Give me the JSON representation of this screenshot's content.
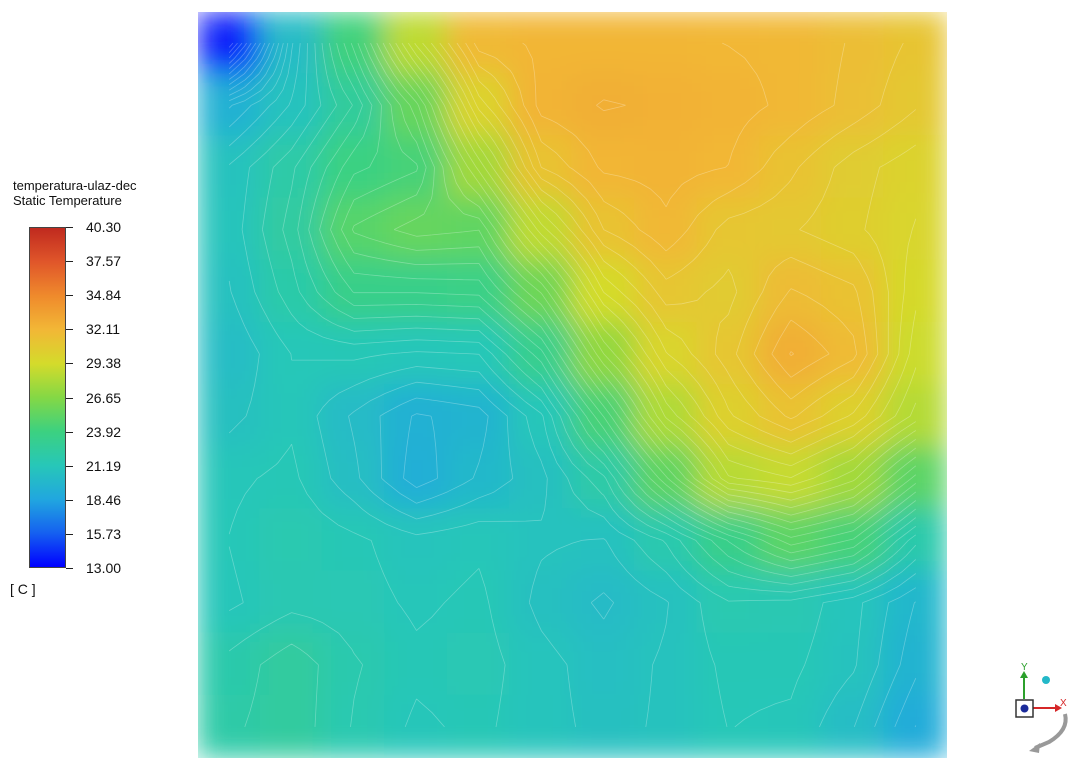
{
  "legend": {
    "title_line1": "temperatura-ulaz-dec",
    "title_line2": "Static Temperature",
    "units": "[ C ]",
    "ticks": [
      "40.30",
      "37.57",
      "34.84",
      "32.11",
      "29.38",
      "26.65",
      "23.92",
      "21.19",
      "18.46",
      "15.73",
      "13.00"
    ],
    "colormap": [
      "#0000ff",
      "#1560f0",
      "#21a7df",
      "#27c7b8",
      "#3cd180",
      "#84d845",
      "#d4db2b",
      "#f2b736",
      "#ef8a2c",
      "#e0562a",
      "#c02a1f"
    ]
  },
  "triad": {
    "x_label": "X",
    "y_label": "Y"
  },
  "chart_data": {
    "type": "heatmap",
    "title": "temperatura-ulaz-dec",
    "subtitle": "Static Temperature",
    "units": "[ C ]",
    "range": [
      13.0,
      40.3
    ],
    "ticks": [
      13.0,
      15.73,
      18.46,
      21.19,
      23.92,
      26.65,
      29.38,
      32.11,
      34.84,
      37.57,
      40.3
    ],
    "grid_nx": 12,
    "grid_ny": 12,
    "grid_rows_top_to_bottom": [
      [
        14.0,
        20.2,
        24.1,
        28.6,
        31.9,
        32.2,
        32.2,
        32.2,
        32.1,
        32.0,
        31.6,
        31.1
      ],
      [
        19.3,
        20.8,
        22.6,
        25.6,
        30.0,
        32.3,
        32.6,
        32.5,
        32.3,
        32.0,
        31.5,
        30.8
      ],
      [
        20.8,
        22.0,
        23.8,
        24.3,
        27.7,
        31.2,
        32.2,
        32.3,
        32.1,
        31.3,
        30.5,
        30.0
      ],
      [
        20.9,
        22.3,
        24.9,
        25.5,
        25.3,
        28.7,
        31.2,
        32.0,
        31.0,
        30.8,
        30.4,
        29.8
      ],
      [
        20.7,
        21.9,
        23.5,
        23.5,
        23.6,
        25.8,
        29.4,
        31.0,
        30.6,
        31.7,
        31.3,
        29.5
      ],
      [
        20.3,
        21.2,
        21.3,
        21.1,
        21.2,
        23.3,
        27.1,
        29.8,
        31.0,
        32.6,
        31.8,
        29.1
      ],
      [
        20.6,
        21.1,
        20.2,
        19.3,
        19.6,
        21.1,
        24.4,
        28.1,
        30.2,
        31.3,
        30.2,
        28.3
      ],
      [
        21.1,
        21.3,
        20.4,
        19.1,
        19.9,
        20.6,
        22.0,
        25.2,
        28.4,
        28.9,
        27.7,
        25.1
      ],
      [
        21.2,
        21.6,
        21.3,
        20.9,
        21.1,
        20.8,
        20.7,
        21.7,
        23.5,
        25.1,
        24.3,
        21.8
      ],
      [
        21.1,
        21.5,
        21.4,
        21.1,
        21.3,
        20.6,
        20.2,
        20.7,
        21.6,
        21.5,
        20.9,
        19.8
      ],
      [
        21.8,
        22.4,
        21.7,
        21.3,
        21.4,
        20.9,
        20.5,
        20.8,
        21.3,
        21.3,
        20.8,
        19.5
      ],
      [
        22.0,
        22.4,
        21.6,
        21.1,
        21.3,
        20.9,
        20.6,
        20.8,
        21.2,
        21.1,
        20.3,
        18.9
      ]
    ],
    "contour_levels": 60
  }
}
